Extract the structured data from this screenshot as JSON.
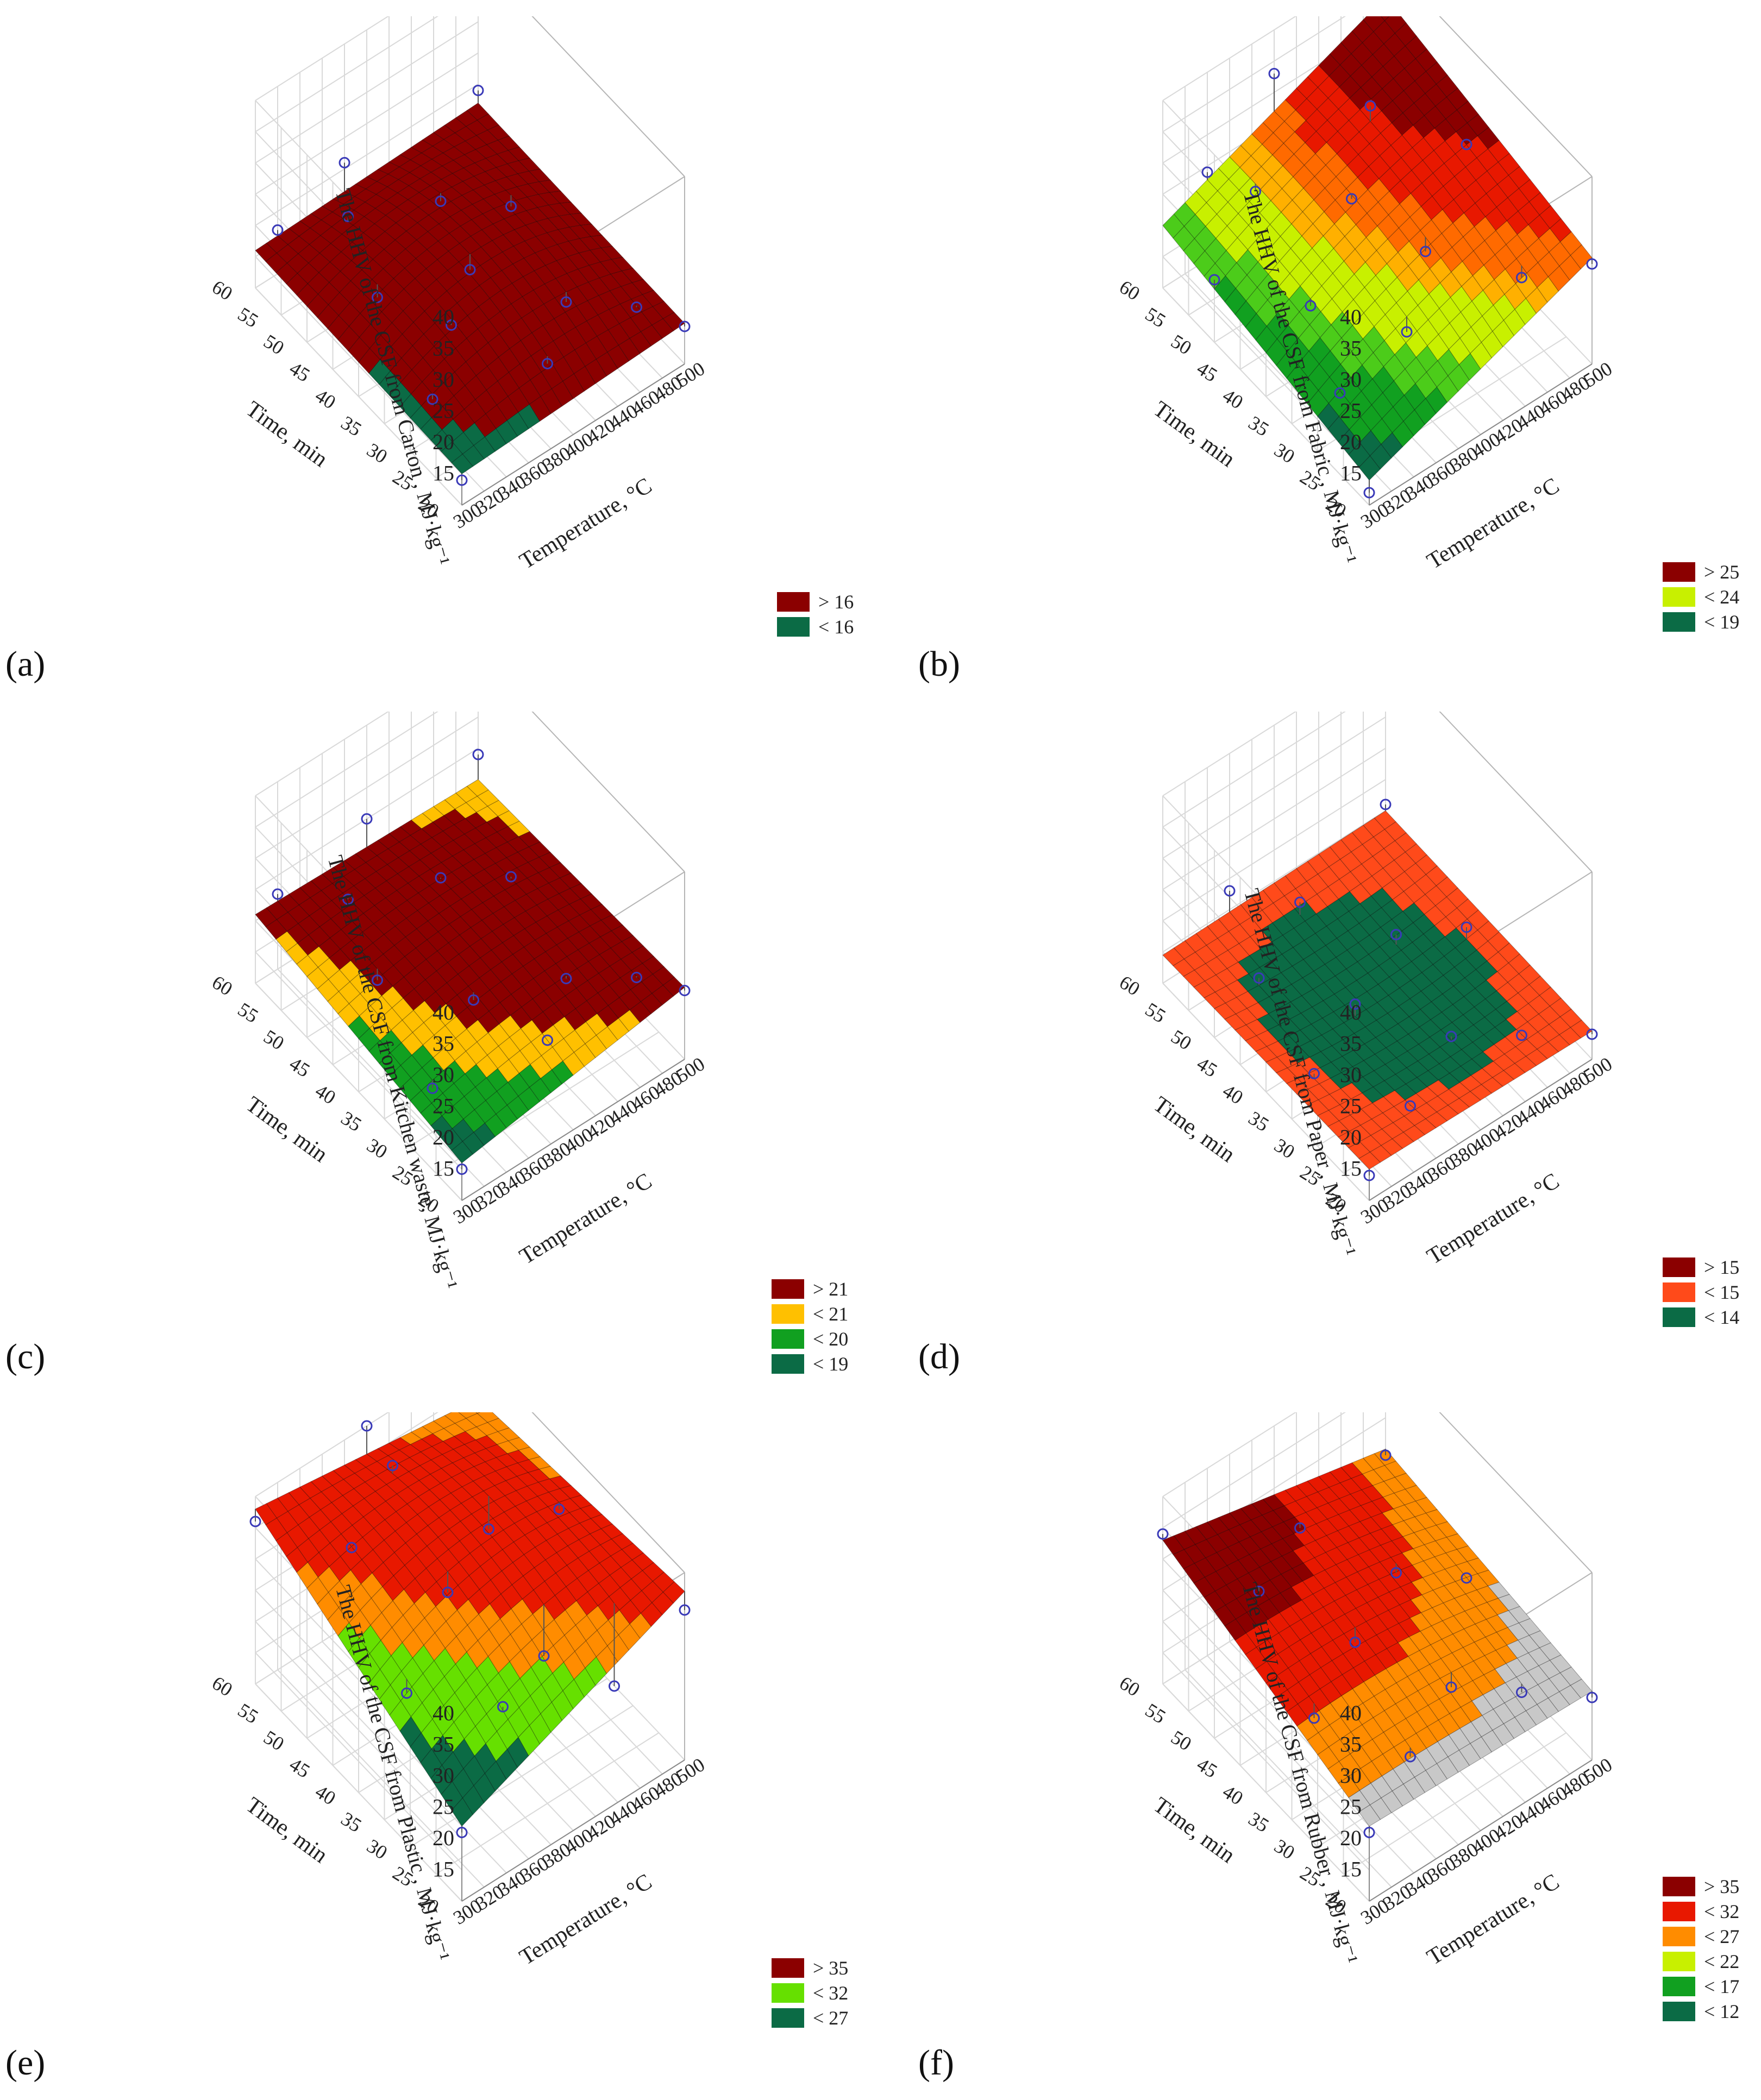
{
  "figure": {
    "chart_data": [
      {
        "type": "surface3d",
        "panel": "a",
        "label": "(a)",
        "title": "",
        "zlabel": "The HHV of the CSF from Carton , MJ·kg⁻¹",
        "xlabel": "Temperature, °C",
        "ylabel": "Time, min",
        "x_ticks": [
          "300",
          "320",
          "340",
          "360",
          "380",
          "400",
          "420",
          "440",
          "460",
          "480",
          "500"
        ],
        "y_ticks": [
          "20",
          "25",
          "30",
          "35",
          "40",
          "45",
          "50",
          "55",
          "60"
        ],
        "z_ticks": [
          "15",
          "20",
          "25",
          "30",
          "35",
          "40"
        ],
        "xlim": [
          300,
          500
        ],
        "ylim": [
          20,
          60
        ],
        "zlim": [
          10,
          40
        ],
        "surface": {
          "corners": {
            "t300_m20": 15,
            "t500_m20": 16.5,
            "t500_m60": 17,
            "t300_m60": 16
          },
          "mid": 21.5
        },
        "legend": [
          {
            "label": "> 16",
            "color": "#8b0000"
          },
          {
            "label": "< 16",
            "color": "#0b6b45"
          }
        ],
        "surface_colors": [
          "#0b6b45",
          "#8b0000"
        ],
        "color_thresholds": [
          16
        ],
        "points": [
          {
            "t": 300,
            "m": 20,
            "z": 14
          },
          {
            "t": 320,
            "m": 30,
            "z": 16
          },
          {
            "t": 340,
            "m": 45,
            "z": 17
          },
          {
            "t": 360,
            "m": 55,
            "z": 19
          },
          {
            "t": 400,
            "m": 25,
            "z": 17
          },
          {
            "t": 400,
            "m": 40,
            "z": 19
          },
          {
            "t": 420,
            "m": 50,
            "z": 19
          },
          {
            "t": 440,
            "m": 30,
            "z": 18
          },
          {
            "t": 460,
            "m": 45,
            "z": 18
          },
          {
            "t": 480,
            "m": 25,
            "z": 17
          },
          {
            "t": 500,
            "m": 20,
            "z": 16
          },
          {
            "t": 500,
            "m": 60,
            "z": 19
          },
          {
            "t": 360,
            "m": 35,
            "z": 19
          },
          {
            "t": 320,
            "m": 60,
            "z": 17
          },
          {
            "t": 380,
            "m": 60,
            "z": 21
          }
        ]
      },
      {
        "type": "surface3d",
        "panel": "b",
        "label": "(b)",
        "title": "",
        "zlabel": "The HHV of the CSF from Fabric , MJ·kg⁻¹",
        "xlabel": "Temperature, °C",
        "ylabel": "Time, min",
        "x_ticks": [
          "300",
          "320",
          "340",
          "360",
          "380",
          "400",
          "420",
          "440",
          "460",
          "480",
          "500"
        ],
        "y_ticks": [
          "20",
          "25",
          "30",
          "35",
          "40",
          "45",
          "50",
          "55",
          "60"
        ],
        "z_ticks": [
          "15",
          "20",
          "25",
          "30",
          "35",
          "40"
        ],
        "xlim": [
          300,
          500
        ],
        "ylim": [
          20,
          60
        ],
        "zlim": [
          10,
          40
        ],
        "surface": {
          "corners": {
            "t300_m20": 14,
            "t500_m20": 27,
            "t500_m60": 34,
            "t300_m60": 20
          },
          "mid": 26
        },
        "legend": [
          {
            "label": "> 25",
            "color": "#8b0000"
          },
          {
            "label": "< 24",
            "color": "#c8f000"
          },
          {
            "label": "< 19",
            "color": "#0b6b45"
          }
        ],
        "surface_colors": [
          "#0b6b45",
          "#11a020",
          "#4ccc1a",
          "#c8f000",
          "#ffb000",
          "#ff6a00",
          "#e81800",
          "#8b0000"
        ],
        "color_thresholds": [
          16,
          19,
          21,
          24,
          25.5,
          27.5,
          30
        ],
        "points": [
          {
            "t": 300,
            "m": 20,
            "z": 12
          },
          {
            "t": 320,
            "m": 30,
            "z": 17
          },
          {
            "t": 340,
            "m": 40,
            "z": 20
          },
          {
            "t": 360,
            "m": 55,
            "z": 23
          },
          {
            "t": 380,
            "m": 30,
            "z": 20
          },
          {
            "t": 400,
            "m": 45,
            "z": 26
          },
          {
            "t": 420,
            "m": 35,
            "z": 24
          },
          {
            "t": 440,
            "m": 50,
            "z": 32
          },
          {
            "t": 460,
            "m": 25,
            "z": 24
          },
          {
            "t": 480,
            "m": 40,
            "z": 30
          },
          {
            "t": 500,
            "m": 20,
            "z": 26
          },
          {
            "t": 500,
            "m": 60,
            "z": 36
          },
          {
            "t": 340,
            "m": 60,
            "z": 24
          },
          {
            "t": 300,
            "m": 50,
            "z": 20
          },
          {
            "t": 400,
            "m": 60,
            "z": 33
          }
        ]
      },
      {
        "type": "surface3d",
        "panel": "c",
        "label": "(c)",
        "title": "",
        "zlabel": "The HHV of the CSF from Kitchen waste, MJ·kg⁻¹",
        "xlabel": "Temperature, °C",
        "ylabel": "Time, min",
        "x_ticks": [
          "300",
          "320",
          "340",
          "360",
          "380",
          "400",
          "420",
          "440",
          "460",
          "480",
          "500"
        ],
        "y_ticks": [
          "20",
          "25",
          "30",
          "35",
          "40",
          "45",
          "50",
          "55",
          "60"
        ],
        "z_ticks": [
          "15",
          "20",
          "25",
          "30",
          "35",
          "40"
        ],
        "xlim": [
          300,
          500
        ],
        "ylim": [
          20,
          60
        ],
        "zlim": [
          10,
          40
        ],
        "surface": {
          "corners": {
            "t300_m20": 16,
            "t500_m20": 21.5,
            "t500_m60": 20,
            "t300_m60": 21
          },
          "mid": 22
        },
        "legend": [
          {
            "label": "> 21",
            "color": "#8b0000"
          },
          {
            "label": "< 21",
            "color": "#ffc000"
          },
          {
            "label": "< 20",
            "color": "#11a020"
          },
          {
            "label": "< 19",
            "color": "#0b6b45"
          }
        ],
        "surface_colors": [
          "#0b6b45",
          "#11a020",
          "#ffc000",
          "#8b0000"
        ],
        "color_thresholds": [
          17,
          19,
          20.5
        ],
        "points": [
          {
            "t": 300,
            "m": 20,
            "z": 15
          },
          {
            "t": 320,
            "m": 30,
            "z": 17
          },
          {
            "t": 340,
            "m": 45,
            "z": 19
          },
          {
            "t": 360,
            "m": 55,
            "z": 21
          },
          {
            "t": 380,
            "m": 35,
            "z": 20
          },
          {
            "t": 400,
            "m": 25,
            "z": 20
          },
          {
            "t": 420,
            "m": 50,
            "z": 22
          },
          {
            "t": 440,
            "m": 30,
            "z": 21
          },
          {
            "t": 460,
            "m": 45,
            "z": 22
          },
          {
            "t": 480,
            "m": 25,
            "z": 21
          },
          {
            "t": 500,
            "m": 20,
            "z": 21
          },
          {
            "t": 500,
            "m": 60,
            "z": 24
          },
          {
            "t": 320,
            "m": 60,
            "z": 22
          },
          {
            "t": 400,
            "m": 60,
            "z": 25
          }
        ]
      },
      {
        "type": "surface3d",
        "panel": "d",
        "label": "(d)",
        "title": "",
        "zlabel": "The HHV of the CSF from Paper , MJ·kg⁻¹",
        "xlabel": "Temperature, °C",
        "ylabel": "Time, min",
        "x_ticks": [
          "300",
          "320",
          "340",
          "360",
          "380",
          "400",
          "420",
          "440",
          "460",
          "480",
          "500"
        ],
        "y_ticks": [
          "20",
          "25",
          "30",
          "35",
          "40",
          "45",
          "50",
          "55",
          "60"
        ],
        "z_ticks": [
          "15",
          "20",
          "25",
          "30",
          "35",
          "40"
        ],
        "xlim": [
          300,
          500
        ],
        "ylim": [
          20,
          60
        ],
        "zlim": [
          10,
          40
        ],
        "surface": {
          "corners": {
            "t300_m20": 15,
            "t500_m20": 14.5,
            "t500_m60": 15,
            "t300_m60": 14.5
          },
          "mid": 13
        },
        "legend": [
          {
            "label": "> 15",
            "color": "#8b0000"
          },
          {
            "label": "< 15",
            "color": "#ff4a1a"
          },
          {
            "label": "< 14",
            "color": "#0b6b45"
          }
        ],
        "surface_colors": [
          "#0b6b45",
          "#ff4a1a",
          "#8b0000"
        ],
        "color_thresholds": [
          14,
          15
        ],
        "points": [
          {
            "t": 300,
            "m": 20,
            "z": 14
          },
          {
            "t": 320,
            "m": 35,
            "z": 15
          },
          {
            "t": 340,
            "m": 50,
            "z": 15
          },
          {
            "t": 360,
            "m": 25,
            "z": 14
          },
          {
            "t": 380,
            "m": 40,
            "z": 15
          },
          {
            "t": 400,
            "m": 55,
            "z": 16
          },
          {
            "t": 420,
            "m": 30,
            "z": 14
          },
          {
            "t": 440,
            "m": 45,
            "z": 15
          },
          {
            "t": 460,
            "m": 25,
            "z": 14
          },
          {
            "t": 480,
            "m": 40,
            "z": 16
          },
          {
            "t": 500,
            "m": 20,
            "z": 14
          },
          {
            "t": 500,
            "m": 60,
            "z": 16
          },
          {
            "t": 360,
            "m": 60,
            "z": 18
          }
        ]
      },
      {
        "type": "surface3d",
        "panel": "e",
        "label": "(e)",
        "title": "",
        "zlabel": "The HHV of the CSF from Plastic , MJ·kg⁻¹",
        "xlabel": "Temperature, °C",
        "ylabel": "Time, min",
        "x_ticks": [
          "300",
          "320",
          "340",
          "360",
          "380",
          "400",
          "420",
          "440",
          "460",
          "480",
          "500"
        ],
        "y_ticks": [
          "20",
          "25",
          "30",
          "35",
          "40",
          "45",
          "50",
          "55",
          "60"
        ],
        "z_ticks": [
          "15",
          "20",
          "25",
          "30",
          "35",
          "40"
        ],
        "xlim": [
          300,
          500
        ],
        "ylim": [
          20,
          60
        ],
        "zlim": [
          10,
          40
        ],
        "surface": {
          "corners": {
            "t300_m20": 22,
            "t500_m20": 37,
            "t500_m60": 33,
            "t300_m60": 38
          },
          "mid": 37
        },
        "legend": [
          {
            "label": "> 35",
            "color": "#8b0000"
          },
          {
            "label": "< 32",
            "color": "#66e000"
          },
          {
            "label": "< 27",
            "color": "#0b6b45"
          }
        ],
        "surface_colors": [
          "#0b6b45",
          "#66e000",
          "#ff8c00",
          "#e81800"
        ],
        "color_thresholds": [
          27,
          32,
          35
        ],
        "points": [
          {
            "t": 300,
            "m": 20,
            "z": 21
          },
          {
            "t": 320,
            "m": 35,
            "z": 28
          },
          {
            "t": 340,
            "m": 50,
            "z": 36
          },
          {
            "t": 360,
            "m": 25,
            "z": 30
          },
          {
            "t": 380,
            "m": 40,
            "z": 33
          },
          {
            "t": 400,
            "m": 55,
            "z": 38
          },
          {
            "t": 420,
            "m": 30,
            "z": 27
          },
          {
            "t": 440,
            "m": 45,
            "z": 32
          },
          {
            "t": 460,
            "m": 25,
            "z": 22
          },
          {
            "t": 480,
            "m": 40,
            "z": 35
          },
          {
            "t": 500,
            "m": 20,
            "z": 34
          },
          {
            "t": 500,
            "m": 60,
            "z": 33
          },
          {
            "t": 300,
            "m": 60,
            "z": 36
          },
          {
            "t": 400,
            "m": 60,
            "z": 40
          }
        ]
      },
      {
        "type": "surface3d",
        "panel": "f",
        "label": "(f)",
        "title": "",
        "zlabel": "The HHV of the CSF from Rubber , MJ·kg⁻¹",
        "xlabel": "Temperature, °C",
        "ylabel": "Time, min",
        "x_ticks": [
          "300",
          "320",
          "340",
          "360",
          "380",
          "400",
          "420",
          "440",
          "460",
          "480",
          "500"
        ],
        "y_ticks": [
          "20",
          "25",
          "30",
          "35",
          "40",
          "45",
          "50",
          "55",
          "60"
        ],
        "z_ticks": [
          "15",
          "20",
          "25",
          "30",
          "35",
          "40"
        ],
        "xlim": [
          300,
          500
        ],
        "ylim": [
          20,
          60
        ],
        "zlim": [
          10,
          40
        ],
        "surface": {
          "corners": {
            "t300_m20": 22,
            "t500_m20": 21,
            "t500_m60": 25,
            "t300_m60": 33
          },
          "mid": 27
        },
        "legend": [
          {
            "label": "> 35",
            "color": "#8b0000"
          },
          {
            "label": "< 32",
            "color": "#e81800"
          },
          {
            "label": "< 27",
            "color": "#ff8c00"
          },
          {
            "label": "< 22",
            "color": "#c8f000"
          },
          {
            "label": "< 17",
            "color": "#11a020"
          },
          {
            "label": "< 12",
            "color": "#0b6b45"
          }
        ],
        "surface_colors": [
          "#c8c8c8",
          "#ff8c00",
          "#e81800",
          "#8b0000"
        ],
        "color_thresholds": [
          23,
          26,
          29
        ],
        "points": [
          {
            "t": 300,
            "m": 20,
            "z": 21
          },
          {
            "t": 320,
            "m": 35,
            "z": 24
          },
          {
            "t": 340,
            "m": 50,
            "z": 29
          },
          {
            "t": 360,
            "m": 25,
            "z": 22
          },
          {
            "t": 380,
            "m": 40,
            "z": 25
          },
          {
            "t": 400,
            "m": 55,
            "z": 28
          },
          {
            "t": 420,
            "m": 30,
            "z": 22
          },
          {
            "t": 440,
            "m": 45,
            "z": 25
          },
          {
            "t": 460,
            "m": 25,
            "z": 21
          },
          {
            "t": 480,
            "m": 40,
            "z": 24
          },
          {
            "t": 500,
            "m": 20,
            "z": 20
          },
          {
            "t": 500,
            "m": 60,
            "z": 24
          },
          {
            "t": 300,
            "m": 60,
            "z": 34
          }
        ]
      }
    ]
  }
}
